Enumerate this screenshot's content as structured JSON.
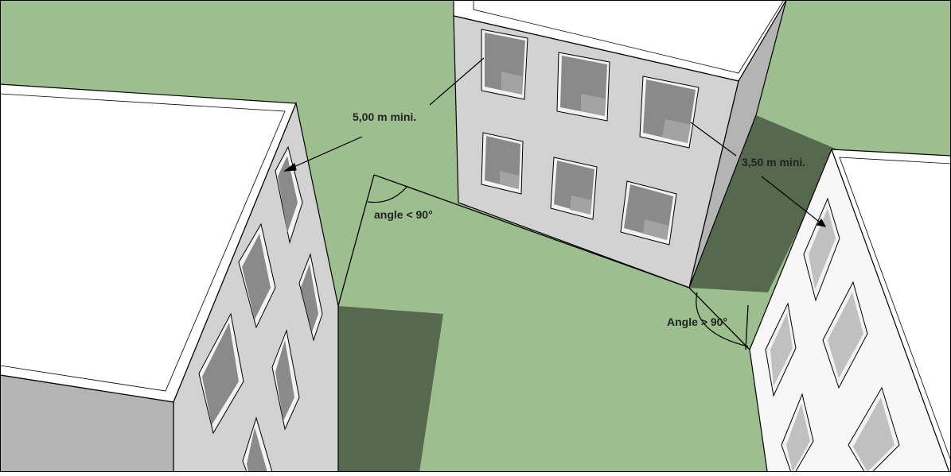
{
  "annotations": {
    "dist_left": "5,00 m mini.",
    "dist_right": "3,50 m mini.",
    "angle_acute": "angle < 90°",
    "angle_obtuse": "Angle > 90°"
  },
  "colors": {
    "ground": "#9dbf8f",
    "shadow": "#56694f",
    "roof": "#ffffff",
    "wall_light": "#d2d2d2",
    "wall_dark": "#b4b4b4",
    "window_glass": "#8a8a8a",
    "window_sill": "#f2f2f2",
    "line": "#000000",
    "text": "#222222"
  }
}
